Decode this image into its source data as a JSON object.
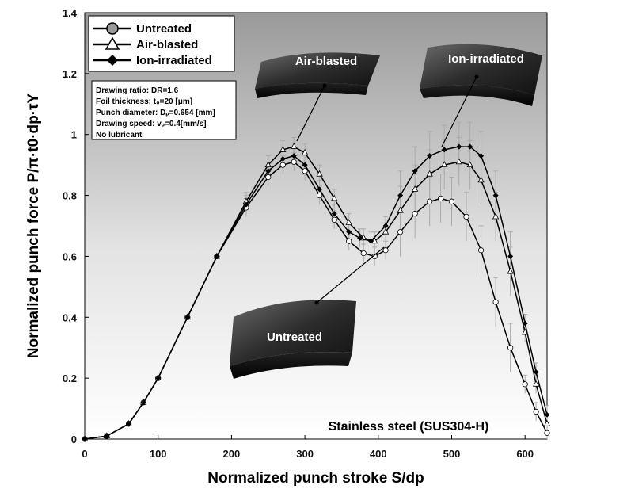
{
  "chart_data": {
    "type": "line",
    "xlabel": "Normalized punch stroke S/dp",
    "ylabel": "Normalized punch force P/π·t0·dp·τY",
    "xlim": [
      0,
      630
    ],
    "ylim": [
      0,
      1.4
    ],
    "xticks": [
      "0",
      "100",
      "200",
      "300",
      "400",
      "500",
      "600"
    ],
    "yticks": [
      "0",
      "0.2",
      "0.4",
      "0.6",
      "0.8",
      "1",
      "1.2",
      "1.4"
    ],
    "grid": false,
    "legend_position": "top-left",
    "series": [
      {
        "name": "Untreated",
        "marker": "circle-open",
        "x": [
          0,
          30,
          60,
          80,
          100,
          140,
          180,
          220,
          250,
          270,
          285,
          300,
          320,
          340,
          360,
          380,
          395,
          410,
          430,
          450,
          470,
          485,
          500,
          520,
          540,
          560,
          580,
          600,
          615,
          630
        ],
        "y": [
          0,
          0.01,
          0.05,
          0.12,
          0.2,
          0.4,
          0.6,
          0.76,
          0.86,
          0.9,
          0.91,
          0.88,
          0.8,
          0.72,
          0.65,
          0.61,
          0.6,
          0.62,
          0.68,
          0.74,
          0.78,
          0.79,
          0.78,
          0.73,
          0.62,
          0.45,
          0.3,
          0.18,
          0.09,
          0.02
        ]
      },
      {
        "name": "Air-blasted",
        "marker": "triangle-open",
        "x": [
          0,
          30,
          60,
          80,
          100,
          140,
          180,
          220,
          250,
          270,
          285,
          300,
          320,
          340,
          360,
          380,
          395,
          410,
          430,
          450,
          470,
          490,
          510,
          525,
          540,
          560,
          580,
          600,
          615,
          630
        ],
        "y": [
          0,
          0.01,
          0.05,
          0.12,
          0.2,
          0.4,
          0.6,
          0.78,
          0.9,
          0.95,
          0.96,
          0.94,
          0.87,
          0.79,
          0.71,
          0.66,
          0.65,
          0.68,
          0.75,
          0.82,
          0.87,
          0.9,
          0.91,
          0.9,
          0.85,
          0.73,
          0.55,
          0.35,
          0.18,
          0.05
        ]
      },
      {
        "name": "Ion-irradiated",
        "marker": "diamond-filled",
        "x": [
          0,
          30,
          60,
          80,
          100,
          140,
          180,
          220,
          250,
          270,
          285,
          300,
          320,
          340,
          360,
          375,
          390,
          410,
          430,
          450,
          470,
          490,
          510,
          525,
          540,
          560,
          580,
          600,
          615,
          630
        ],
        "y": [
          0,
          0.01,
          0.05,
          0.12,
          0.2,
          0.4,
          0.6,
          0.77,
          0.88,
          0.92,
          0.93,
          0.9,
          0.82,
          0.74,
          0.68,
          0.66,
          0.65,
          0.7,
          0.8,
          0.88,
          0.93,
          0.95,
          0.96,
          0.96,
          0.93,
          0.8,
          0.6,
          0.38,
          0.22,
          0.08
        ]
      }
    ],
    "conditions": [
      "Drawing ratio: DR=1.6",
      "Foil thickness: t₀=20 [μm]",
      "Punch diameter: Dₚ=0.654 [mm]",
      "Drawing speed: vₚ=0.4[mm/s]",
      "No lubricant"
    ],
    "annotations": {
      "air_blasted": "Air-blasted",
      "ion_irradiated": "Ion-irradiated",
      "untreated": "Untreated",
      "material": "Stainless steel (SUS304-H)"
    }
  }
}
